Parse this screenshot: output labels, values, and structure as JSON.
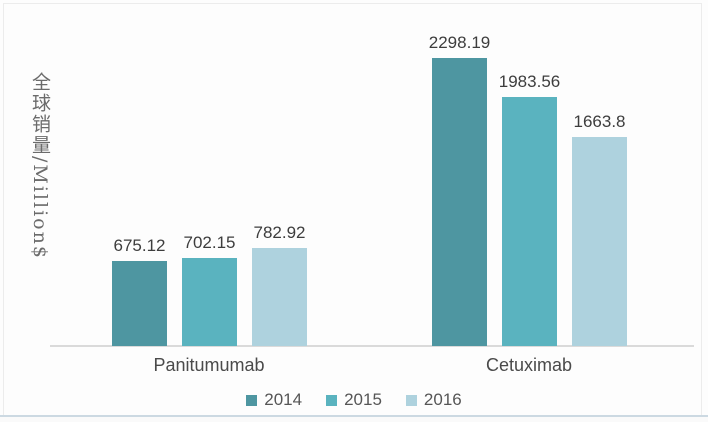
{
  "figure": {
    "y_axis_label": "全球销量/Million$"
  },
  "chart_data": {
    "type": "bar",
    "title": "",
    "categories": [
      "Panitumumab",
      "Cetuximab"
    ],
    "series": [
      {
        "name": "2014",
        "color": "#4e96a1",
        "values": [
          675.12,
          2298.19
        ]
      },
      {
        "name": "2015",
        "color": "#5ab3bf",
        "values": [
          702.15,
          1983.56
        ]
      },
      {
        "name": "2016",
        "color": "#aed2de",
        "values": [
          782.92,
          1663.8
        ]
      }
    ],
    "value_labels": [
      "675.12",
      "702.15",
      "782.92",
      "2298.19",
      "1983.56",
      "1663.8"
    ],
    "xlabel": "",
    "ylabel": "全球销量/Million$",
    "ylim": [
      0,
      2500
    ],
    "grid": false,
    "axis_color": "#dadada",
    "value_label_color": "#3d3d3d",
    "legend_position": "bottom"
  }
}
